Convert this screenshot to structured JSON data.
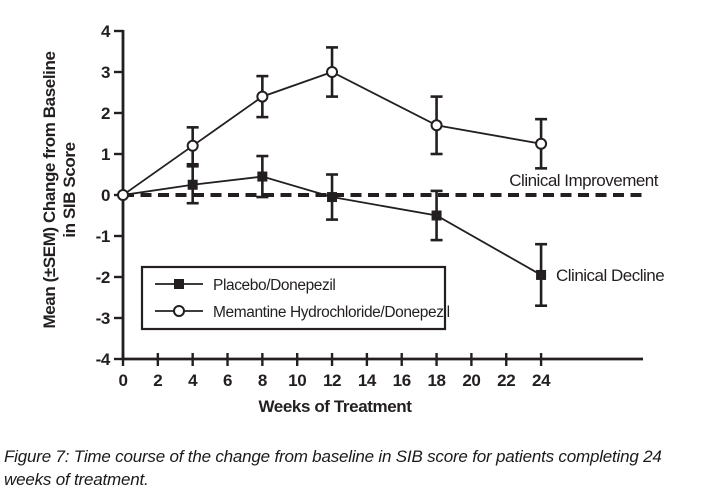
{
  "figure": {
    "caption": "Figure 7: Time course of the change from baseline in SIB score for patients completing 24 weeks of treatment."
  },
  "chart_data": {
    "type": "line",
    "title": "",
    "xlabel": "Weeks of Treatment",
    "ylabel_line1": "Mean (±SEM) Change from Baseline",
    "ylabel_line2": "in SIB Score",
    "xlim": [
      0,
      29.8
    ],
    "ylim": [
      -4,
      4
    ],
    "xticks": [
      0,
      2,
      4,
      6,
      8,
      10,
      12,
      14,
      16,
      18,
      20,
      22,
      24
    ],
    "yticks": [
      4,
      3,
      2,
      1,
      0,
      -1,
      -2,
      -3,
      -4
    ],
    "x": [
      0,
      4,
      8,
      12,
      18,
      24
    ],
    "series": [
      {
        "name": "Placebo/Donepezil",
        "marker": "filled-square",
        "values": [
          0,
          0.25,
          0.45,
          -0.05,
          -0.5,
          -1.95
        ],
        "sem": [
          0,
          0.45,
          0.5,
          0.55,
          0.6,
          0.75
        ]
      },
      {
        "name": "Memantine Hydrochloride/Donepezil",
        "marker": "open-circle",
        "values": [
          0,
          1.2,
          2.4,
          3.0,
          1.7,
          1.25
        ],
        "sem": [
          0,
          0.45,
          0.5,
          0.6,
          0.7,
          0.6
        ]
      }
    ],
    "baseline": {
      "y": 0,
      "style": "dashed"
    },
    "annotations": [
      {
        "text": "Clinical Improvement",
        "position": "above-baseline-right"
      },
      {
        "text": "Clinical Decline",
        "position": "right-of-last-placebo-point"
      }
    ],
    "legend_position": "lower-left-inside",
    "grid": false,
    "ink_color": "#231f20",
    "background": "#ffffff"
  }
}
